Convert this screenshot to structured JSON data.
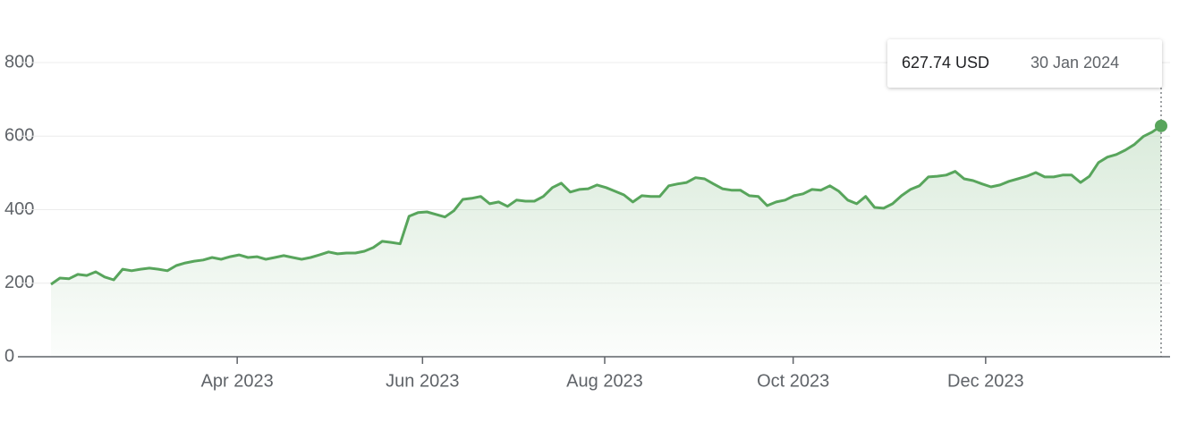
{
  "chart_data": {
    "type": "line",
    "color": "#58a55c",
    "values": [
      197,
      214,
      212,
      224,
      221,
      231,
      217,
      209,
      238,
      234,
      238,
      241,
      238,
      234,
      248,
      255,
      260,
      263,
      270,
      265,
      272,
      277,
      270,
      272,
      265,
      270,
      275,
      270,
      265,
      270,
      277,
      285,
      280,
      282,
      282,
      287,
      297,
      314,
      311,
      307,
      382,
      392,
      394,
      387,
      380,
      397,
      428,
      431,
      436,
      416,
      421,
      409,
      426,
      423,
      423,
      436,
      460,
      472,
      448,
      455,
      457,
      467,
      460,
      450,
      440,
      421,
      438,
      436,
      436,
      465,
      470,
      474,
      487,
      484,
      470,
      457,
      453,
      453,
      438,
      436,
      411,
      421,
      426,
      438,
      443,
      455,
      453,
      465,
      450,
      426,
      416,
      436,
      406,
      404,
      416,
      438,
      455,
      465,
      489,
      491,
      494,
      504,
      484,
      479,
      470,
      462,
      467,
      477,
      484,
      491,
      501,
      489,
      489,
      494,
      494,
      474,
      491,
      528,
      543,
      550,
      562,
      577,
      599,
      611,
      627.74
    ],
    "xlim": [
      0,
      124
    ],
    "xticks": [
      {
        "value": 20.8,
        "label": "Apr 2023"
      },
      {
        "value": 41.5,
        "label": "Jun 2023"
      },
      {
        "value": 61.85,
        "label": "Aug 2023"
      },
      {
        "value": 82.9,
        "label": "Oct 2023"
      },
      {
        "value": 104.4,
        "label": "Dec 2023"
      }
    ],
    "ylim": [
      0,
      800
    ],
    "yticks": [
      0,
      200,
      400,
      600,
      800
    ],
    "grid": true,
    "tooltip": {
      "label": "627.74 USD",
      "date": "30 Jan 2024"
    }
  }
}
